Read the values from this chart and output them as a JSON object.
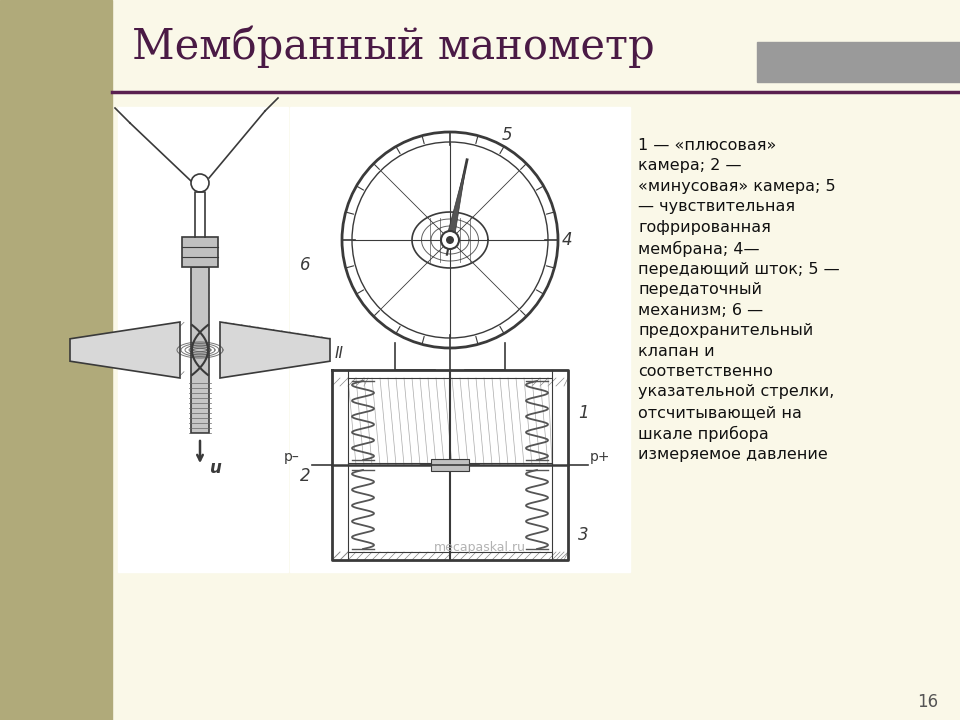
{
  "bg_color": "#faf8e8",
  "sidebar_color": "#b0aa7a",
  "title": "Мембранный манометр",
  "title_color": "#4a1a45",
  "title_fontsize": 30,
  "line_color": "#5a2050",
  "gray_rect_color": "#9a9a9a",
  "description": "1 — «плюсовая»\nкамера; 2 —\n«минусовая» камера; 5\n— чувствительная\nгофрированная\nмембрана; 4—\nпередающий шток; 5 —\nпередаточный\nмеханизм; 6 —\nпредохранительный\nклапан и\nсоответственно\nуказательной стрелки,\nотсчитывающей на\nшкале прибора\nизмеряемое давление",
  "watermark": "mecapaskal.ru",
  "page_num": "16"
}
